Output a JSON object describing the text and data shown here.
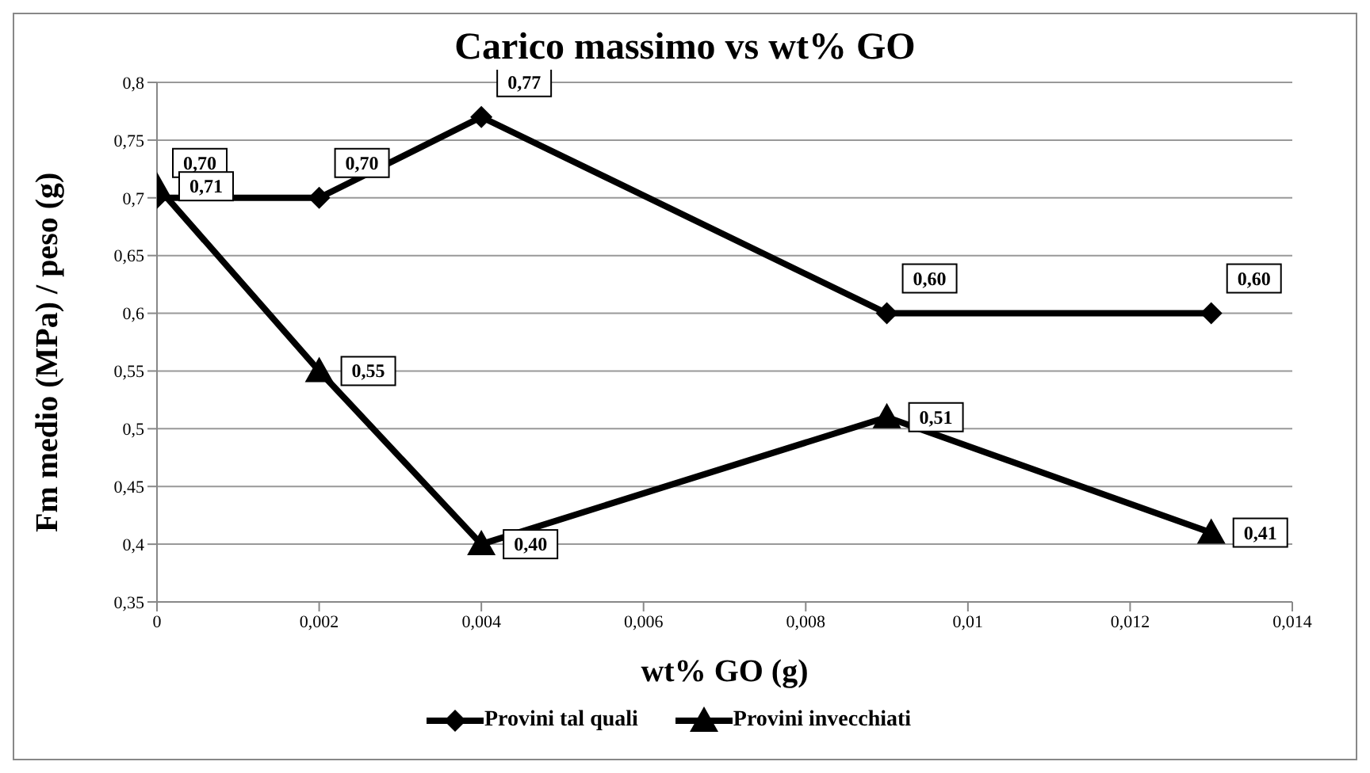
{
  "chart_data": {
    "type": "line",
    "title": "Carico massimo vs wt% GO",
    "xlabel": "wt% GO (g)",
    "ylabel": "Fm medio (MPa) / peso (g)",
    "x": [
      0,
      0.002,
      0.004,
      0.009,
      0.013
    ],
    "series": [
      {
        "name": "Provini tal quali",
        "color": "#000000",
        "marker": "diamond",
        "values": [
          0.7,
          0.7,
          0.77,
          0.6,
          0.6
        ],
        "value_labels": [
          "0,70",
          "0,70",
          "0,77",
          "0,60",
          "0,60"
        ]
      },
      {
        "name": "Provini invecchiati",
        "color": "#000000",
        "marker": "triangle",
        "values": [
          0.71,
          0.55,
          0.4,
          0.51,
          0.41
        ],
        "value_labels": [
          "0,71",
          "0,55",
          "0,40",
          "0,51",
          "0,41"
        ]
      }
    ],
    "xlim": [
      0,
      0.014
    ],
    "xticks": [
      0,
      {
        "value": 0.002,
        "label": "0,002"
      },
      {
        "value": 0.004,
        "label": "0,004"
      },
      {
        "value": 0.006,
        "label": "0,006"
      },
      {
        "value": 0.008,
        "label": "0,008"
      },
      {
        "value": 0.01,
        "label": "0,01"
      },
      {
        "value": 0.012,
        "label": "0,012"
      },
      {
        "value": 0.014,
        "label": "0,014"
      }
    ],
    "ylim": [
      0.35,
      0.8
    ],
    "yticks": [
      {
        "value": 0.35,
        "label": "0,35"
      },
      {
        "value": 0.4,
        "label": "0,4"
      },
      {
        "value": 0.45,
        "label": "0,45"
      },
      {
        "value": 0.5,
        "label": "0,5"
      },
      {
        "value": 0.55,
        "label": "0,55"
      },
      {
        "value": 0.6,
        "label": "0,6"
      },
      {
        "value": 0.65,
        "label": "0,65"
      },
      {
        "value": 0.7,
        "label": "0,7"
      },
      {
        "value": 0.75,
        "label": "0,75"
      },
      {
        "value": 0.8,
        "label": "0,8"
      }
    ],
    "grid": "y",
    "legend": "bottom",
    "line_style": "solid"
  }
}
